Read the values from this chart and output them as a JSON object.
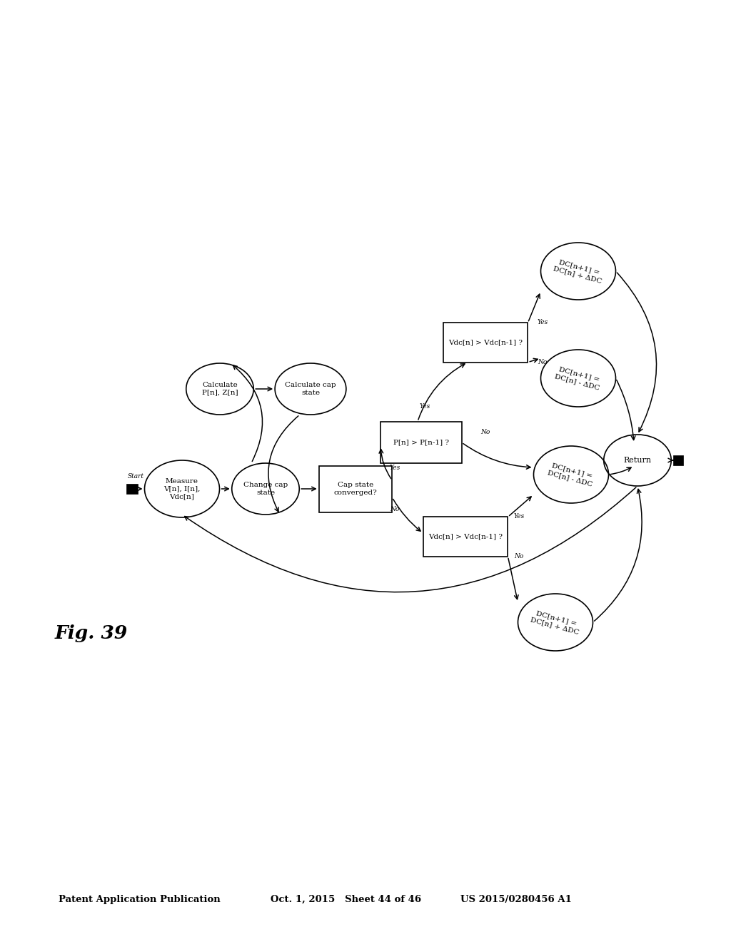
{
  "bg_color": "#ffffff",
  "header_left": "Patent Application Publication",
  "header_mid": "Oct. 1, 2015   Sheet 44 of 46",
  "header_right": "US 2015/0280456 A1",
  "fig_label": "Fig. 39"
}
